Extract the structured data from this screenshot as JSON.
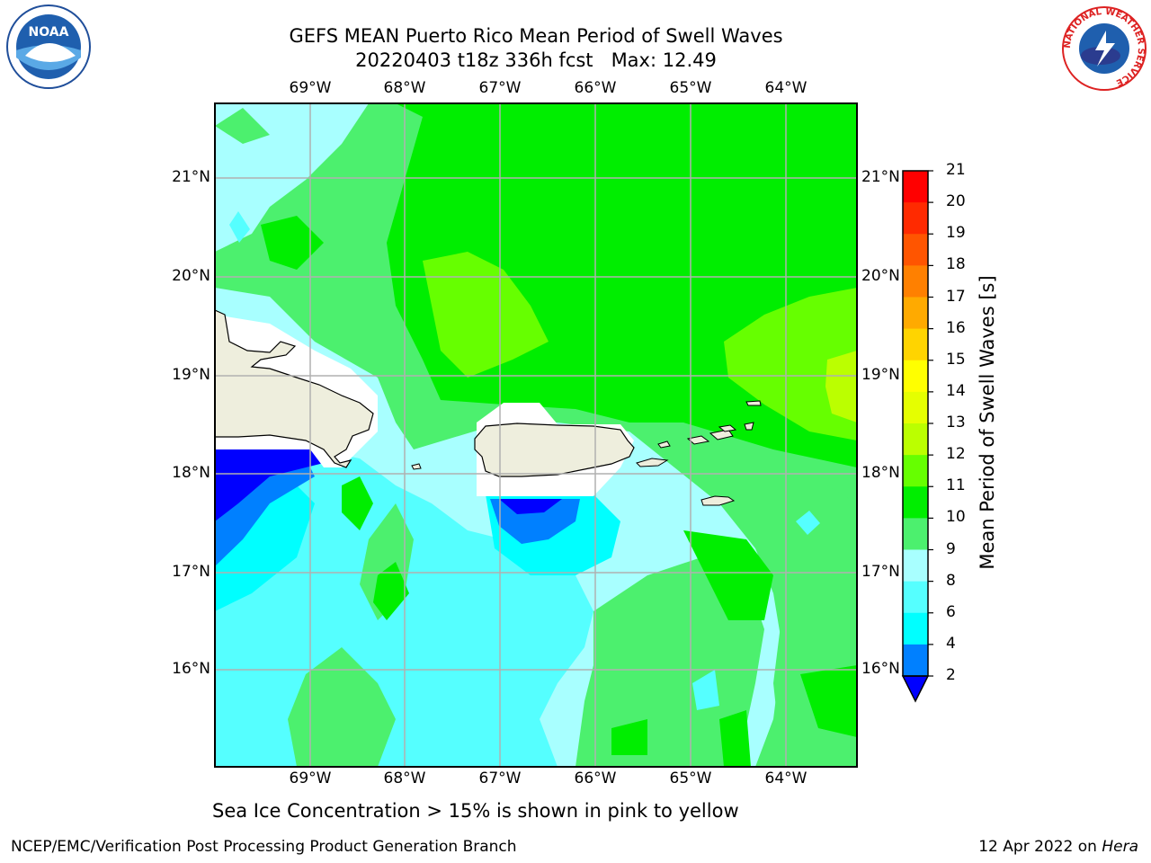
{
  "title_line1": "GEFS MEAN Puerto Rico Mean Period of Swell Waves",
  "title_line2": "20220403 t18z 336h fcst   Max: 12.49",
  "lon_labels": [
    "69°W",
    "68°W",
    "67°W",
    "66°W",
    "65°W",
    "64°W"
  ],
  "lat_labels": [
    "21°N",
    "20°N",
    "19°N",
    "18°N",
    "17°N",
    "16°N"
  ],
  "colorbar": {
    "label": "Mean Period of Swell Waves [s]",
    "ticks": [
      "21",
      "20",
      "19",
      "18",
      "17",
      "16",
      "15",
      "14",
      "13",
      "12",
      "11",
      "10",
      "9",
      "8",
      "6",
      "4",
      "2"
    ],
    "colors": [
      "#ff0000",
      "#ff2a00",
      "#ff5500",
      "#ff8000",
      "#ffaa00",
      "#ffd400",
      "#ffff00",
      "#e5ff00",
      "#bbff00",
      "#66ff00",
      "#00ee00",
      "#4cf06e",
      "#a8ffff",
      "#55ffff",
      "#00ffff",
      "#0080ff",
      "#0000ff"
    ]
  },
  "caption": "Sea Ice Concentration > 15% is shown in pink to yellow",
  "footer_left": "NCEP/EMC/Verification Post Processing Product Generation Branch",
  "footer_date": "12 Apr 2022 on ",
  "footer_host": "Hera",
  "logos": {
    "left": "NOAA",
    "right_ring": "NATIONAL WEATHER SERVICE"
  }
}
